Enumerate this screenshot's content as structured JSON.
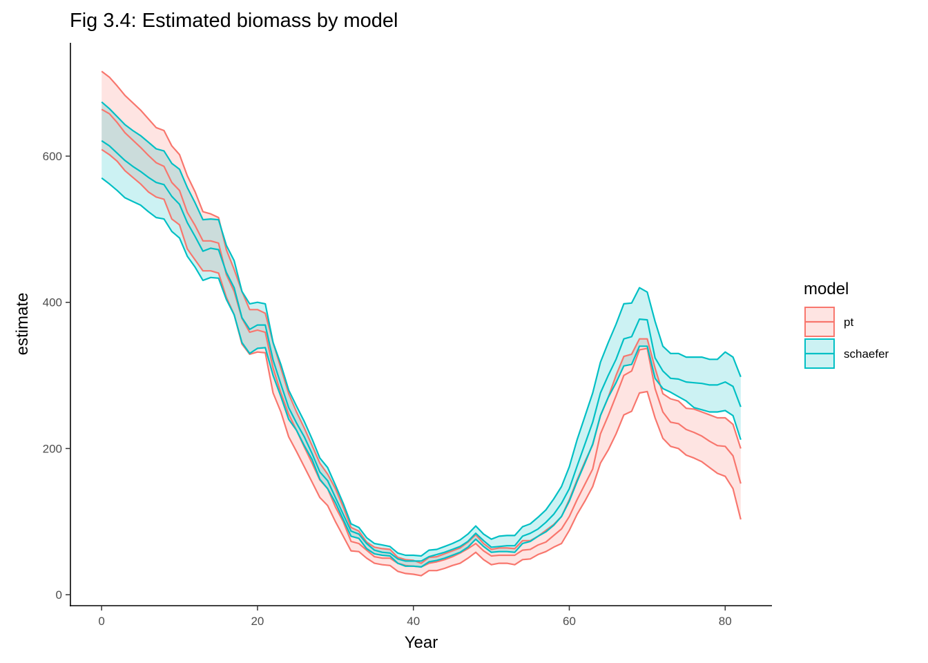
{
  "chart_data": {
    "type": "area",
    "title": "Fig 3.4: Estimated biomass by model",
    "xlabel": "Year",
    "ylabel": "estimate",
    "xlim": [
      -4,
      86
    ],
    "ylim": [
      -15,
      755
    ],
    "xticks": [
      0,
      20,
      40,
      60,
      80
    ],
    "yticks": [
      0,
      200,
      400,
      600
    ],
    "grid": false,
    "legend": {
      "title": "model",
      "position": "right"
    },
    "x": [
      0,
      1,
      2,
      3,
      4,
      5,
      6,
      7,
      8,
      9,
      10,
      11,
      12,
      13,
      14,
      15,
      16,
      17,
      18,
      19,
      20,
      21,
      22,
      23,
      24,
      25,
      26,
      27,
      28,
      29,
      30,
      31,
      32,
      33,
      34,
      35,
      36,
      37,
      38,
      39,
      40,
      41,
      42,
      43,
      44,
      45,
      46,
      47,
      48,
      49,
      50,
      51,
      52,
      53,
      54,
      55,
      56,
      57,
      58,
      59,
      60,
      61,
      62,
      63,
      64,
      65,
      66,
      67,
      68,
      69,
      70,
      71,
      72,
      73,
      74,
      75,
      76,
      77,
      78,
      79,
      80,
      81,
      82
    ],
    "series": [
      {
        "name": "pt",
        "color": "#F8766D",
        "upper": [
          716,
          708,
          696,
          683,
          673,
          663,
          651,
          639,
          635,
          614,
          602,
          573,
          551,
          524,
          521,
          516,
          472,
          445,
          415,
          390,
          390,
          385,
          345,
          310,
          275,
          250,
          228,
          204,
          180,
          165,
          145,
          120,
          92,
          87,
          72,
          65,
          63,
          62,
          51,
          48,
          47,
          43,
          51,
          52,
          56,
          60,
          64,
          72,
          82,
          70,
          62,
          64,
          64,
          63,
          74,
          74,
          80,
          88,
          96,
          107,
          130,
          157,
          182,
          205,
          245,
          270,
          300,
          326,
          329,
          350,
          350,
          310,
          275,
          268,
          265,
          255,
          254,
          250,
          246,
          242,
          242,
          233,
          200
        ],
        "mid": [
          664,
          658,
          646,
          632,
          622,
          612,
          601,
          591,
          586,
          564,
          553,
          523,
          505,
          484,
          484,
          481,
          438,
          415,
          378,
          359,
          362,
          359,
          310,
          276,
          247,
          225,
          202,
          180,
          157,
          145,
          120,
          100,
          73,
          70,
          61,
          52,
          50,
          50,
          43,
          40,
          39,
          38,
          43,
          45,
          48,
          52,
          57,
          63,
          70,
          60,
          53,
          54,
          54,
          54,
          61,
          62,
          68,
          72,
          81,
          90,
          107,
          130,
          151,
          172,
          220,
          245,
          272,
          300,
          306,
          335,
          337,
          282,
          250,
          236,
          234,
          226,
          222,
          217,
          210,
          204,
          203,
          190,
          152
        ],
        "lower": [
          609,
          602,
          593,
          580,
          571,
          562,
          551,
          544,
          541,
          514,
          506,
          473,
          458,
          443,
          443,
          440,
          407,
          383,
          343,
          329,
          332,
          331,
          276,
          250,
          216,
          196,
          175,
          154,
          133,
          122,
          100,
          80,
          60,
          59,
          50,
          43,
          41,
          40,
          32,
          29,
          28,
          26,
          33,
          33,
          36,
          40,
          43,
          50,
          58,
          48,
          41,
          43,
          43,
          41,
          48,
          49,
          55,
          59,
          65,
          70,
          88,
          110,
          128,
          148,
          180,
          198,
          220,
          246,
          251,
          276,
          278,
          242,
          214,
          203,
          200,
          191,
          187,
          182,
          174,
          166,
          162,
          145,
          103
        ]
      },
      {
        "name": "schaefer",
        "color": "#00BFC4",
        "upper": [
          674,
          665,
          654,
          643,
          635,
          628,
          619,
          610,
          607,
          590,
          582,
          557,
          536,
          513,
          514,
          513,
          478,
          457,
          415,
          398,
          400,
          398,
          345,
          315,
          280,
          258,
          237,
          213,
          187,
          174,
          150,
          125,
          97,
          92,
          78,
          70,
          68,
          66,
          57,
          54,
          54,
          53,
          61,
          62,
          66,
          70,
          75,
          83,
          94,
          83,
          76,
          80,
          81,
          81,
          93,
          97,
          106,
          116,
          131,
          148,
          175,
          212,
          244,
          276,
          318,
          345,
          370,
          398,
          399,
          420,
          414,
          374,
          340,
          330,
          330,
          325,
          325,
          325,
          322,
          322,
          332,
          325,
          298
        ],
        "mid": [
          621,
          614,
          604,
          594,
          586,
          579,
          571,
          564,
          561,
          545,
          534,
          509,
          490,
          470,
          474,
          472,
          441,
          420,
          379,
          363,
          369,
          369,
          321,
          288,
          256,
          235,
          216,
          193,
          168,
          156,
          133,
          110,
          87,
          83,
          70,
          61,
          58,
          57,
          49,
          46,
          46,
          46,
          52,
          55,
          58,
          62,
          66,
          73,
          84,
          74,
          65,
          66,
          67,
          67,
          80,
          84,
          90,
          99,
          110,
          125,
          145,
          176,
          206,
          236,
          276,
          300,
          322,
          350,
          353,
          377,
          376,
          324,
          306,
          296,
          295,
          291,
          290,
          289,
          287,
          287,
          291,
          285,
          257
        ],
        "lower": [
          570,
          562,
          553,
          543,
          538,
          533,
          524,
          516,
          514,
          497,
          488,
          463,
          448,
          430,
          434,
          433,
          404,
          383,
          345,
          330,
          337,
          338,
          300,
          271,
          240,
          225,
          204,
          185,
          158,
          145,
          126,
          103,
          80,
          77,
          63,
          56,
          54,
          53,
          43,
          39,
          39,
          38,
          45,
          47,
          50,
          54,
          58,
          65,
          76,
          66,
          58,
          59,
          59,
          58,
          70,
          73,
          80,
          86,
          95,
          107,
          128,
          155,
          180,
          206,
          245,
          270,
          290,
          313,
          315,
          340,
          340,
          296,
          282,
          277,
          271,
          265,
          256,
          253,
          250,
          250,
          252,
          245,
          212
        ]
      }
    ]
  }
}
